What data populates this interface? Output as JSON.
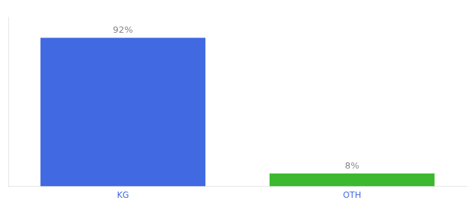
{
  "chart_data": {
    "type": "bar",
    "categories": [
      "KG",
      "OTH"
    ],
    "values": [
      92,
      8
    ],
    "value_labels": [
      "92%",
      "8%"
    ],
    "colors": [
      "#4169E1",
      "#3CB92E"
    ],
    "ylim": [
      0,
      105
    ],
    "grid": false,
    "data_labels": true,
    "tick_labels": "x"
  }
}
